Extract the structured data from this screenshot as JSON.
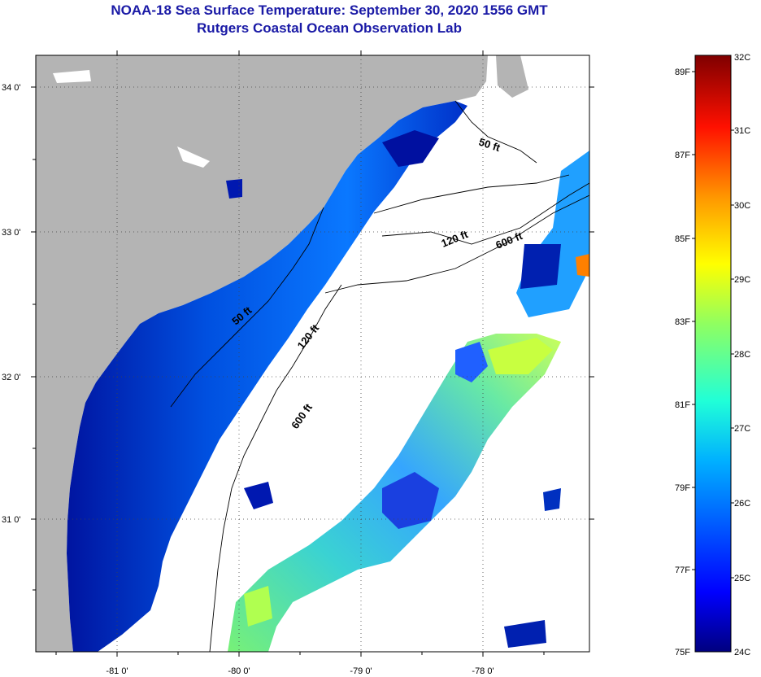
{
  "header": {
    "title": "NOAA-18 Sea Surface Temperature:  September 30, 2020 1556 GMT",
    "subtitle": "Rutgers Coastal Ocean Observation Lab"
  },
  "axes": {
    "lat_ticks": [
      "34 0'",
      "33 0'",
      "32 0'",
      "31 0'"
    ],
    "lon_ticks": [
      "-81 0'",
      "-80 0'",
      "-79 0'",
      "-78 0'"
    ]
  },
  "contours": {
    "labels": [
      "50 ft",
      "120 ft",
      "600 ft",
      "50 ft",
      "120 ft",
      "600 ft"
    ]
  },
  "colorbar": {
    "fahrenheit": [
      "89F",
      "87F",
      "85F",
      "83F",
      "81F",
      "79F",
      "77F",
      "75F"
    ],
    "celsius": [
      "32C",
      "31C",
      "30C",
      "29C",
      "28C",
      "27C",
      "26C",
      "25C",
      "24C"
    ],
    "colors": [
      "#7f0000",
      "#d40000",
      "#ff4000",
      "#ff9900",
      "#ffee00",
      "#b6ff40",
      "#40ffc0",
      "#00b0ff",
      "#0040ff",
      "#0000b0"
    ]
  },
  "colors": {
    "land": "#b4b4b4",
    "title": "#1a1aa6",
    "cloud": "#ffffff"
  }
}
